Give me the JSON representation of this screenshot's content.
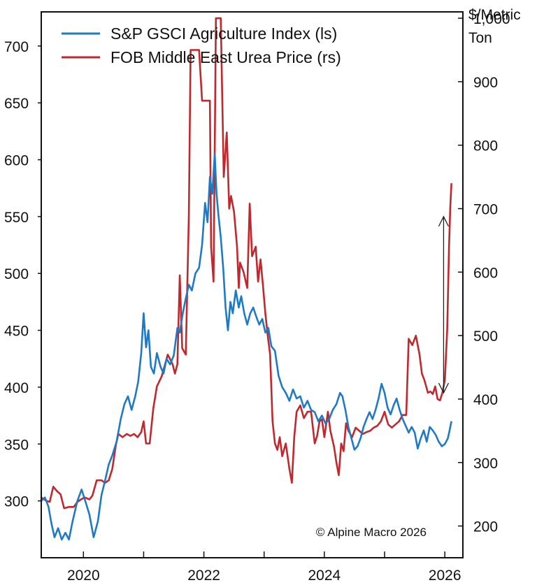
{
  "chart_data": {
    "type": "line",
    "title": "",
    "xlabel": "",
    "left_axis": {
      "label": "",
      "range": [
        250,
        730
      ],
      "ticks": [
        300,
        350,
        400,
        450,
        500,
        550,
        600,
        650,
        700
      ],
      "tick_labels": [
        "300",
        "350",
        "400",
        "450",
        "500",
        "550",
        "600",
        "650",
        "700"
      ]
    },
    "right_axis": {
      "label_lines": [
        "$/Metric",
        "Ton"
      ],
      "range": [
        150,
        1010
      ],
      "ticks": [
        200,
        300,
        400,
        500,
        600,
        700,
        800,
        900,
        1000
      ],
      "tick_labels": [
        "200",
        "300",
        "400",
        "500",
        "600",
        "700",
        "800",
        "900",
        "1,000"
      ]
    },
    "x_axis": {
      "range": [
        2019.3,
        2026.3
      ],
      "ticks": [
        2020,
        2021,
        2022,
        2023,
        2024,
        2025,
        2026
      ],
      "labeled_ticks": [
        2020,
        2022,
        2024,
        2026
      ],
      "tick_labels": [
        "2020",
        "2022",
        "2024",
        "2026"
      ]
    },
    "legend": {
      "placement": "top-left"
    },
    "series": [
      {
        "name": "S&P GSCI Agriculture Index (ls)",
        "axis": "left",
        "color": "#1f7ac4",
        "points": [
          [
            2019.3,
            300
          ],
          [
            2019.36,
            303
          ],
          [
            2019.42,
            295
          ],
          [
            2019.47,
            280
          ],
          [
            2019.52,
            268
          ],
          [
            2019.58,
            276
          ],
          [
            2019.64,
            266
          ],
          [
            2019.7,
            272
          ],
          [
            2019.76,
            266
          ],
          [
            2019.82,
            282
          ],
          [
            2019.9,
            300
          ],
          [
            2019.97,
            310
          ],
          [
            2020.03,
            300
          ],
          [
            2020.1,
            288
          ],
          [
            2020.17,
            268
          ],
          [
            2020.24,
            282
          ],
          [
            2020.3,
            305
          ],
          [
            2020.36,
            318
          ],
          [
            2020.42,
            332
          ],
          [
            2020.48,
            340
          ],
          [
            2020.55,
            352
          ],
          [
            2020.62,
            372
          ],
          [
            2020.68,
            385
          ],
          [
            2020.74,
            392
          ],
          [
            2020.8,
            380
          ],
          [
            2020.86,
            392
          ],
          [
            2020.91,
            405
          ],
          [
            2020.96,
            430
          ],
          [
            2021.0,
            465
          ],
          [
            2021.04,
            435
          ],
          [
            2021.08,
            450
          ],
          [
            2021.12,
            418
          ],
          [
            2021.17,
            412
          ],
          [
            2021.22,
            430
          ],
          [
            2021.28,
            418
          ],
          [
            2021.33,
            412
          ],
          [
            2021.38,
            425
          ],
          [
            2021.44,
            420
          ],
          [
            2021.5,
            428
          ],
          [
            2021.56,
            452
          ],
          [
            2021.6,
            448
          ],
          [
            2021.65,
            465
          ],
          [
            2021.7,
            478
          ],
          [
            2021.75,
            490
          ],
          [
            2021.8,
            485
          ],
          [
            2021.86,
            500
          ],
          [
            2021.92,
            505
          ],
          [
            2021.97,
            525
          ],
          [
            2022.02,
            562
          ],
          [
            2022.06,
            545
          ],
          [
            2022.1,
            585
          ],
          [
            2022.14,
            570
          ],
          [
            2022.18,
            605
          ],
          [
            2022.21,
            570
          ],
          [
            2022.24,
            552
          ],
          [
            2022.28,
            532
          ],
          [
            2022.32,
            505
          ],
          [
            2022.36,
            470
          ],
          [
            2022.4,
            450
          ],
          [
            2022.44,
            475
          ],
          [
            2022.48,
            465
          ],
          [
            2022.53,
            485
          ],
          [
            2022.58,
            470
          ],
          [
            2022.62,
            480
          ],
          [
            2022.67,
            465
          ],
          [
            2022.72,
            455
          ],
          [
            2022.77,
            465
          ],
          [
            2022.82,
            470
          ],
          [
            2022.87,
            462
          ],
          [
            2022.92,
            455
          ],
          [
            2022.97,
            460
          ],
          [
            2023.02,
            448
          ],
          [
            2023.07,
            452
          ],
          [
            2023.12,
            436
          ],
          [
            2023.18,
            432
          ],
          [
            2023.24,
            410
          ],
          [
            2023.3,
            400
          ],
          [
            2023.36,
            395
          ],
          [
            2023.42,
            388
          ],
          [
            2023.48,
            398
          ],
          [
            2023.54,
            390
          ],
          [
            2023.6,
            392
          ],
          [
            2023.66,
            382
          ],
          [
            2023.72,
            388
          ],
          [
            2023.78,
            380
          ],
          [
            2023.84,
            378
          ],
          [
            2023.9,
            370
          ],
          [
            2023.96,
            375
          ],
          [
            2024.02,
            368
          ],
          [
            2024.08,
            372
          ],
          [
            2024.14,
            380
          ],
          [
            2024.2,
            385
          ],
          [
            2024.26,
            395
          ],
          [
            2024.3,
            392
          ],
          [
            2024.35,
            380
          ],
          [
            2024.4,
            365
          ],
          [
            2024.45,
            355
          ],
          [
            2024.5,
            345
          ],
          [
            2024.55,
            348
          ],
          [
            2024.6,
            355
          ],
          [
            2024.65,
            365
          ],
          [
            2024.7,
            372
          ],
          [
            2024.75,
            378
          ],
          [
            2024.8,
            372
          ],
          [
            2024.85,
            380
          ],
          [
            2024.9,
            390
          ],
          [
            2024.95,
            403
          ],
          [
            2025.0,
            395
          ],
          [
            2025.05,
            382
          ],
          [
            2025.1,
            376
          ],
          [
            2025.15,
            384
          ],
          [
            2025.2,
            390
          ],
          [
            2025.25,
            380
          ],
          [
            2025.3,
            372
          ],
          [
            2025.35,
            366
          ],
          [
            2025.4,
            360
          ],
          [
            2025.45,
            365
          ],
          [
            2025.5,
            360
          ],
          [
            2025.55,
            346
          ],
          [
            2025.6,
            355
          ],
          [
            2025.65,
            362
          ],
          [
            2025.7,
            352
          ],
          [
            2025.75,
            365
          ],
          [
            2025.8,
            362
          ],
          [
            2025.85,
            358
          ],
          [
            2025.9,
            352
          ],
          [
            2025.95,
            348
          ],
          [
            2026.0,
            350
          ],
          [
            2026.05,
            355
          ],
          [
            2026.08,
            362
          ],
          [
            2026.11,
            370
          ]
        ]
      },
      {
        "name": "FOB Middle East Urea Price (rs)",
        "axis": "right",
        "color": "#c0282d",
        "points": [
          [
            2019.3,
            245
          ],
          [
            2019.38,
            240
          ],
          [
            2019.44,
            238
          ],
          [
            2019.5,
            262
          ],
          [
            2019.56,
            255
          ],
          [
            2019.62,
            250
          ],
          [
            2019.68,
            228
          ],
          [
            2019.76,
            230
          ],
          [
            2019.84,
            230
          ],
          [
            2019.9,
            238
          ],
          [
            2019.96,
            242
          ],
          [
            2020.02,
            245
          ],
          [
            2020.1,
            242
          ],
          [
            2020.15,
            248
          ],
          [
            2020.22,
            272
          ],
          [
            2020.3,
            272
          ],
          [
            2020.36,
            268
          ],
          [
            2020.42,
            272
          ],
          [
            2020.48,
            290
          ],
          [
            2020.54,
            328
          ],
          [
            2020.58,
            345
          ],
          [
            2020.65,
            340
          ],
          [
            2020.72,
            345
          ],
          [
            2020.78,
            342
          ],
          [
            2020.84,
            345
          ],
          [
            2020.9,
            340
          ],
          [
            2020.96,
            348
          ],
          [
            2021.0,
            365
          ],
          [
            2021.04,
            330
          ],
          [
            2021.1,
            330
          ],
          [
            2021.16,
            385
          ],
          [
            2021.22,
            420
          ],
          [
            2021.3,
            436
          ],
          [
            2021.4,
            470
          ],
          [
            2021.48,
            455
          ],
          [
            2021.52,
            440
          ],
          [
            2021.56,
            455
          ],
          [
            2021.6,
            595
          ],
          [
            2021.64,
            480
          ],
          [
            2021.7,
            470
          ],
          [
            2021.75,
            690
          ],
          [
            2021.78,
            950
          ],
          [
            2021.85,
            950
          ],
          [
            2021.92,
            950
          ],
          [
            2021.97,
            870
          ],
          [
            2022.04,
            870
          ],
          [
            2022.1,
            870
          ],
          [
            2022.12,
            640
          ],
          [
            2022.16,
            585
          ],
          [
            2022.2,
            1000
          ],
          [
            2022.28,
            1000
          ],
          [
            2022.33,
            750
          ],
          [
            2022.38,
            820
          ],
          [
            2022.42,
            700
          ],
          [
            2022.45,
            720
          ],
          [
            2022.5,
            695
          ],
          [
            2022.55,
            640
          ],
          [
            2022.58,
            575
          ],
          [
            2022.6,
            615
          ],
          [
            2022.66,
            600
          ],
          [
            2022.72,
            575
          ],
          [
            2022.76,
            708
          ],
          [
            2022.8,
            625
          ],
          [
            2022.86,
            640
          ],
          [
            2022.9,
            585
          ],
          [
            2022.94,
            620
          ],
          [
            2022.98,
            580
          ],
          [
            2023.02,
            535
          ],
          [
            2023.06,
            500
          ],
          [
            2023.1,
            470
          ],
          [
            2023.14,
            365
          ],
          [
            2023.18,
            330
          ],
          [
            2023.22,
            320
          ],
          [
            2023.26,
            340
          ],
          [
            2023.3,
            310
          ],
          [
            2023.36,
            330
          ],
          [
            2023.42,
            290
          ],
          [
            2023.46,
            268
          ],
          [
            2023.5,
            340
          ],
          [
            2023.54,
            380
          ],
          [
            2023.6,
            390
          ],
          [
            2023.66,
            370
          ],
          [
            2023.72,
            380
          ],
          [
            2023.78,
            380
          ],
          [
            2023.84,
            330
          ],
          [
            2023.88,
            342
          ],
          [
            2023.92,
            365
          ],
          [
            2023.96,
            368
          ],
          [
            2024.0,
            340
          ],
          [
            2024.06,
            380
          ],
          [
            2024.1,
            350
          ],
          [
            2024.16,
            325
          ],
          [
            2024.2,
            300
          ],
          [
            2024.24,
            280
          ],
          [
            2024.28,
            330
          ],
          [
            2024.32,
            318
          ],
          [
            2024.36,
            362
          ],
          [
            2024.4,
            350
          ],
          [
            2024.46,
            340
          ],
          [
            2024.52,
            355
          ],
          [
            2024.58,
            350
          ],
          [
            2024.64,
            345
          ],
          [
            2024.7,
            348
          ],
          [
            2024.76,
            350
          ],
          [
            2024.82,
            355
          ],
          [
            2024.88,
            358
          ],
          [
            2024.94,
            365
          ],
          [
            2025.0,
            380
          ],
          [
            2025.06,
            360
          ],
          [
            2025.12,
            355
          ],
          [
            2025.18,
            360
          ],
          [
            2025.24,
            365
          ],
          [
            2025.3,
            375
          ],
          [
            2025.36,
            375
          ],
          [
            2025.4,
            495
          ],
          [
            2025.46,
            485
          ],
          [
            2025.52,
            500
          ],
          [
            2025.58,
            470
          ],
          [
            2025.62,
            440
          ],
          [
            2025.66,
            430
          ],
          [
            2025.72,
            410
          ],
          [
            2025.76,
            412
          ],
          [
            2025.8,
            408
          ],
          [
            2025.84,
            420
          ],
          [
            2025.88,
            400
          ],
          [
            2025.92,
            398
          ],
          [
            2025.96,
            410
          ],
          [
            2026.0,
            430
          ],
          [
            2026.04,
            510
          ],
          [
            2026.07,
            640
          ],
          [
            2026.09,
            700
          ],
          [
            2026.11,
            740
          ]
        ]
      }
    ],
    "annotations": [
      {
        "type": "double-arrow",
        "x": 2025.98,
        "from_left": 395,
        "to_left": 550
      },
      {
        "type": "text",
        "text": "© Alpine Macro 2026",
        "placement": "bottom-right"
      }
    ]
  }
}
